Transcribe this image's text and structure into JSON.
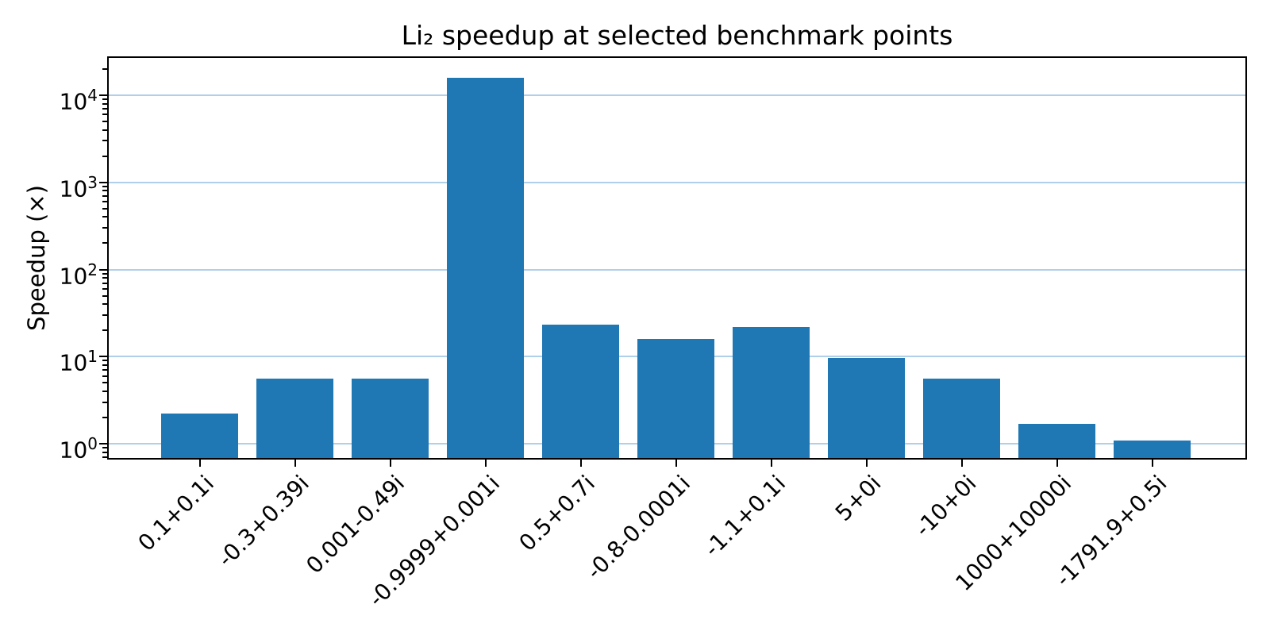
{
  "chart_data": {
    "type": "bar",
    "title": "Li₂ speedup at selected benchmark points",
    "xlabel": "",
    "ylabel": "Speedup (×)",
    "categories": [
      "0.1+0.1i",
      "-0.3+0.39i",
      "0.001-0.49i",
      "-0.9999+0.001i",
      "0.5+0.7i",
      "-0.8-0.0001i",
      "-1.1+0.1i",
      "5+0i",
      "-10+0i",
      "1000+10000i",
      "-1791.9+0.5i"
    ],
    "values": [
      2.2,
      5.6,
      5.6,
      15800,
      23.5,
      16,
      22,
      9.6,
      5.6,
      1.7,
      1.1
    ],
    "yscale": "log",
    "ylim": [
      0.686,
      26800
    ],
    "yticks": [
      1,
      10,
      100,
      1000,
      10000
    ],
    "grid": "horizontal-major",
    "legend": "none",
    "bar_color": "#1f77b4",
    "grid_color": "#b0cfe8",
    "axis_color": "#000000",
    "background_color": "#ffffff"
  }
}
